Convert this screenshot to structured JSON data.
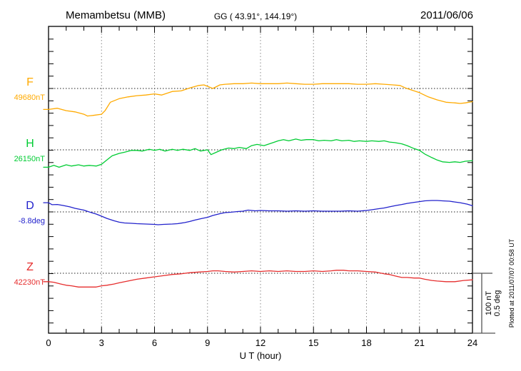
{
  "header": {
    "station": "Memambetsu (MMB)",
    "coordinates": "GG ( 43.91°, 144.19°)",
    "date": "2011/06/06"
  },
  "axis": {
    "xlabel": "U T (hour)",
    "x_ticks": [
      0,
      3,
      6,
      9,
      12,
      15,
      18,
      21,
      24
    ]
  },
  "scale_bar": {
    "nT": "100 nT",
    "deg": "0.5 deg"
  },
  "plotted_note": "Plotted at 2011/07/07 00:58 UT",
  "colors": {
    "F": "#FFAA00",
    "H": "#00CC33",
    "D": "#2222CC",
    "Z": "#E62E2E",
    "frame": "#000000",
    "grid": "#888888",
    "baseline": "#222222",
    "scalebar": "#555555"
  },
  "chart_data": {
    "type": "line",
    "title": "Memambetsu (MMB) magnetogram 2011/06/06",
    "xlabel": "U T (hour)",
    "x_range": [
      0,
      24
    ],
    "x_ticks": [
      0,
      3,
      6,
      9,
      12,
      15,
      18,
      21,
      24
    ],
    "grid": "vertical dotted lines every 3 hours; dotted horizontal baseline per channel",
    "scale_per_division": {
      "nT": 100,
      "deg": 0.5
    },
    "series": [
      {
        "name": "F",
        "unit": "nT",
        "baseline_label": "49680nT",
        "baseline_value": 49680,
        "color": "#FFAA00",
        "points": [
          [
            0,
            -35
          ],
          [
            0.5,
            -33
          ],
          [
            1,
            -37
          ],
          [
            1.5,
            -39
          ],
          [
            2,
            -43
          ],
          [
            2.2,
            -46
          ],
          [
            2.5,
            -45
          ],
          [
            3,
            -43
          ],
          [
            3.2,
            -37
          ],
          [
            3.5,
            -23
          ],
          [
            4,
            -17
          ],
          [
            4.5,
            -14
          ],
          [
            5,
            -12
          ],
          [
            5.5,
            -11
          ],
          [
            6,
            -9
          ],
          [
            6.4,
            -11
          ],
          [
            7,
            -5
          ],
          [
            7.5,
            -4
          ],
          [
            8,
            1
          ],
          [
            8.5,
            5
          ],
          [
            8.8,
            6
          ],
          [
            9.3,
            0
          ],
          [
            9.7,
            6
          ],
          [
            10,
            7
          ],
          [
            10.5,
            8
          ],
          [
            11,
            8
          ],
          [
            11.5,
            9
          ],
          [
            12,
            8
          ],
          [
            12.5,
            8
          ],
          [
            13,
            8
          ],
          [
            13.5,
            9
          ],
          [
            14,
            8
          ],
          [
            14.5,
            7
          ],
          [
            15,
            7
          ],
          [
            15.5,
            8
          ],
          [
            16,
            8
          ],
          [
            16.5,
            8
          ],
          [
            17,
            8
          ],
          [
            17.5,
            7
          ],
          [
            18,
            7
          ],
          [
            18.5,
            8
          ],
          [
            19,
            7
          ],
          [
            19.5,
            6
          ],
          [
            19.9,
            5
          ],
          [
            20.2,
            1
          ],
          [
            20.5,
            -2
          ],
          [
            21,
            -7
          ],
          [
            21.5,
            -14
          ],
          [
            22,
            -19
          ],
          [
            22.5,
            -23
          ],
          [
            23,
            -24
          ],
          [
            23.3,
            -25
          ],
          [
            23.6,
            -24
          ],
          [
            24,
            -22
          ]
        ]
      },
      {
        "name": "H",
        "unit": "nT",
        "baseline_label": "26150nT",
        "baseline_value": 26150,
        "color": "#00CC33",
        "points": [
          [
            0,
            -29
          ],
          [
            0.3,
            -26
          ],
          [
            0.6,
            -29
          ],
          [
            1,
            -25
          ],
          [
            1.3,
            -27
          ],
          [
            1.7,
            -25
          ],
          [
            2,
            -27
          ],
          [
            2.3,
            -26
          ],
          [
            2.7,
            -27
          ],
          [
            3,
            -24
          ],
          [
            3.3,
            -17
          ],
          [
            3.6,
            -10
          ],
          [
            4,
            -6
          ],
          [
            4.3,
            -4
          ],
          [
            4.7,
            -1
          ],
          [
            5,
            -1
          ],
          [
            5.3,
            -2
          ],
          [
            5.7,
            1
          ],
          [
            6,
            -1
          ],
          [
            6.3,
            1
          ],
          [
            6.6,
            -2
          ],
          [
            7,
            1
          ],
          [
            7.3,
            -1
          ],
          [
            7.6,
            1
          ],
          [
            8,
            -1
          ],
          [
            8.3,
            2
          ],
          [
            8.6,
            -2
          ],
          [
            9,
            0
          ],
          [
            9.2,
            -8
          ],
          [
            9.5,
            -4
          ],
          [
            9.8,
            0
          ],
          [
            10.2,
            3
          ],
          [
            10.5,
            2
          ],
          [
            10.8,
            4
          ],
          [
            11.2,
            2
          ],
          [
            11.5,
            7
          ],
          [
            11.8,
            9
          ],
          [
            12.2,
            7
          ],
          [
            12.5,
            10
          ],
          [
            12.8,
            13
          ],
          [
            13,
            15
          ],
          [
            13.3,
            17
          ],
          [
            13.6,
            15
          ],
          [
            14,
            18
          ],
          [
            14.3,
            16
          ],
          [
            14.6,
            17
          ],
          [
            15,
            17
          ],
          [
            15.3,
            15
          ],
          [
            15.6,
            16
          ],
          [
            16,
            15
          ],
          [
            16.3,
            17
          ],
          [
            16.6,
            15
          ],
          [
            17,
            16
          ],
          [
            17.3,
            14
          ],
          [
            17.6,
            15
          ],
          [
            18,
            14
          ],
          [
            18.3,
            15
          ],
          [
            18.7,
            14
          ],
          [
            19,
            15
          ],
          [
            19.3,
            13
          ],
          [
            19.6,
            12
          ],
          [
            20,
            10
          ],
          [
            20.3,
            7
          ],
          [
            20.7,
            2
          ],
          [
            21,
            -1
          ],
          [
            21.3,
            -7
          ],
          [
            21.7,
            -13
          ],
          [
            22,
            -17
          ],
          [
            22.3,
            -20
          ],
          [
            22.7,
            -21
          ],
          [
            23,
            -20
          ],
          [
            23.3,
            -21
          ],
          [
            23.6,
            -19
          ],
          [
            24,
            -18
          ]
        ]
      },
      {
        "name": "D",
        "unit": "deg",
        "baseline_label": "-8.8deg",
        "baseline_value": -8.8,
        "color": "#2222CC",
        "points": [
          [
            0,
            0.077
          ],
          [
            0.2,
            0.06
          ],
          [
            0.5,
            0.062
          ],
          [
            0.8,
            0.054
          ],
          [
            1.2,
            0.042
          ],
          [
            1.5,
            0.03
          ],
          [
            2,
            0.015
          ],
          [
            2.3,
            0
          ],
          [
            2.7,
            -0.018
          ],
          [
            3,
            -0.036
          ],
          [
            3.3,
            -0.054
          ],
          [
            3.7,
            -0.074
          ],
          [
            4,
            -0.086
          ],
          [
            4.3,
            -0.092
          ],
          [
            4.7,
            -0.095
          ],
          [
            5,
            -0.098
          ],
          [
            5.5,
            -0.101
          ],
          [
            6,
            -0.104
          ],
          [
            6.2,
            -0.107
          ],
          [
            6.5,
            -0.104
          ],
          [
            7,
            -0.101
          ],
          [
            7.3,
            -0.098
          ],
          [
            7.7,
            -0.089
          ],
          [
            8,
            -0.08
          ],
          [
            8.3,
            -0.068
          ],
          [
            8.7,
            -0.054
          ],
          [
            9,
            -0.045
          ],
          [
            9.3,
            -0.03
          ],
          [
            9.7,
            -0.015
          ],
          [
            10,
            -0.006
          ],
          [
            10.3,
            -0.003
          ],
          [
            10.7,
            0.003
          ],
          [
            11,
            0.006
          ],
          [
            11.3,
            0.015
          ],
          [
            11.7,
            0.009
          ],
          [
            12,
            0.012
          ],
          [
            12.5,
            0.009
          ],
          [
            13,
            0.009
          ],
          [
            13.5,
            0.006
          ],
          [
            14,
            0.009
          ],
          [
            14.5,
            0.006
          ],
          [
            15,
            0.009
          ],
          [
            15.5,
            0.006
          ],
          [
            16,
            0.006
          ],
          [
            16.5,
            0.006
          ],
          [
            17,
            0.009
          ],
          [
            17.5,
            0.006
          ],
          [
            18,
            0.012
          ],
          [
            18.3,
            0.018
          ],
          [
            18.7,
            0.027
          ],
          [
            19,
            0.033
          ],
          [
            19.3,
            0.042
          ],
          [
            19.7,
            0.054
          ],
          [
            20,
            0.062
          ],
          [
            20.3,
            0.071
          ],
          [
            20.7,
            0.08
          ],
          [
            21,
            0.086
          ],
          [
            21.3,
            0.092
          ],
          [
            21.7,
            0.095
          ],
          [
            22,
            0.095
          ],
          [
            22.3,
            0.092
          ],
          [
            22.7,
            0.089
          ],
          [
            23,
            0.083
          ],
          [
            23.3,
            0.077
          ],
          [
            23.7,
            0.065
          ],
          [
            24,
            0.051
          ]
        ]
      },
      {
        "name": "Z",
        "unit": "nT",
        "baseline_label": "42230nT",
        "baseline_value": 42230,
        "color": "#E62E2E",
        "points": [
          [
            0,
            -14
          ],
          [
            0.3,
            -15
          ],
          [
            0.7,
            -18
          ],
          [
            1,
            -20
          ],
          [
            1.3,
            -21
          ],
          [
            1.7,
            -23
          ],
          [
            2,
            -23
          ],
          [
            2.3,
            -23
          ],
          [
            2.7,
            -23
          ],
          [
            3,
            -21
          ],
          [
            3.3,
            -20
          ],
          [
            3.7,
            -18
          ],
          [
            4,
            -16
          ],
          [
            4.5,
            -13
          ],
          [
            5,
            -10
          ],
          [
            5.5,
            -8
          ],
          [
            6,
            -6
          ],
          [
            6.5,
            -4
          ],
          [
            7,
            -2
          ],
          [
            7.5,
            -1
          ],
          [
            8,
            1
          ],
          [
            8.5,
            2
          ],
          [
            9,
            3
          ],
          [
            9.3,
            4
          ],
          [
            9.6,
            4
          ],
          [
            10,
            3
          ],
          [
            10.5,
            2
          ],
          [
            11,
            3
          ],
          [
            11.5,
            4
          ],
          [
            12,
            3
          ],
          [
            12.5,
            4
          ],
          [
            13,
            3
          ],
          [
            13.5,
            4
          ],
          [
            14,
            3
          ],
          [
            14.5,
            3
          ],
          [
            15,
            4
          ],
          [
            15.5,
            3
          ],
          [
            16,
            4
          ],
          [
            16.3,
            5
          ],
          [
            16.7,
            5
          ],
          [
            17,
            4
          ],
          [
            17.5,
            4
          ],
          [
            18,
            3
          ],
          [
            18.5,
            2
          ],
          [
            19,
            -1
          ],
          [
            19.3,
            -2
          ],
          [
            19.7,
            -5
          ],
          [
            20,
            -7
          ],
          [
            20.3,
            -7
          ],
          [
            20.7,
            -8
          ],
          [
            21,
            -8
          ],
          [
            21.3,
            -10
          ],
          [
            21.7,
            -12
          ],
          [
            22,
            -13
          ],
          [
            22.5,
            -14
          ],
          [
            23,
            -14
          ],
          [
            23.5,
            -12
          ],
          [
            24,
            -11
          ]
        ]
      }
    ]
  }
}
